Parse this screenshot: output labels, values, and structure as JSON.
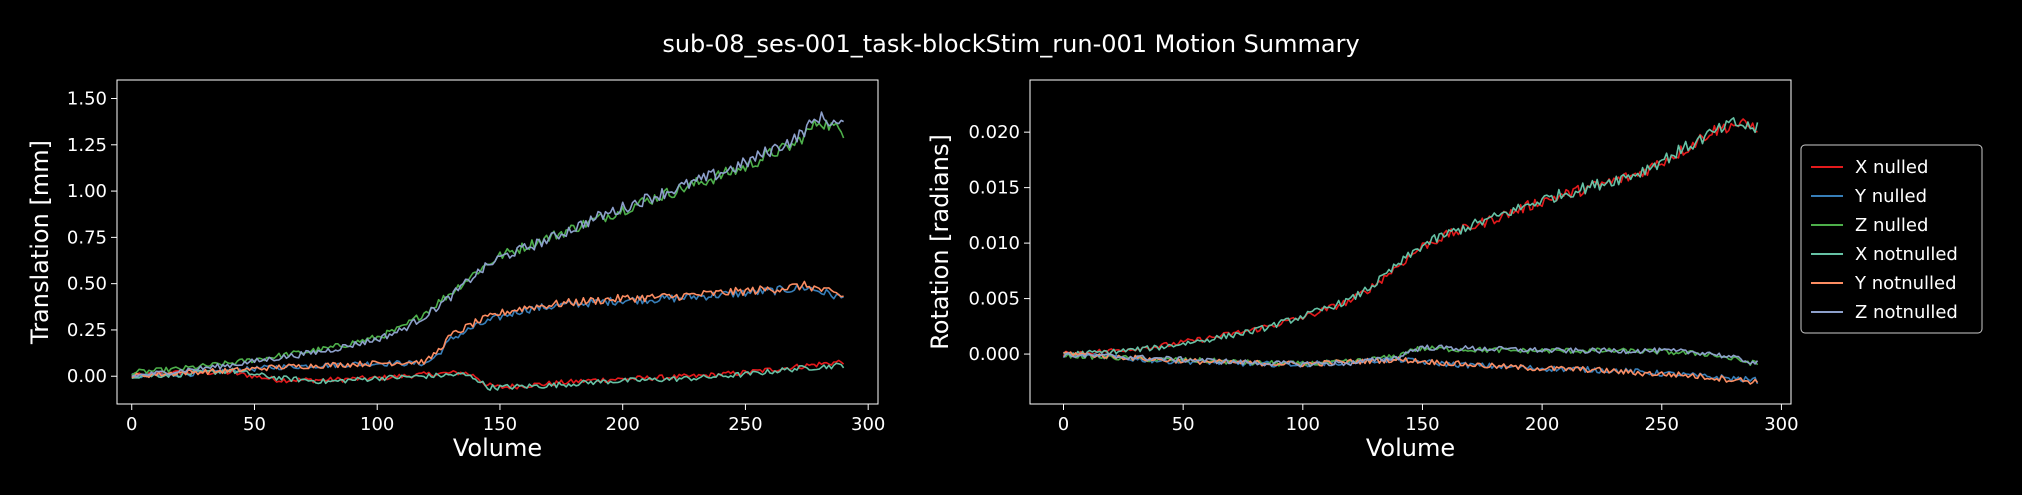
{
  "figure_title": "sub-08_ses-001_task-blockStim_run-001 Motion Summary",
  "colors": {
    "background": "#000000",
    "axes": "#ffffff",
    "X nulled": "#e41a1c",
    "Y nulled": "#377eb8",
    "Z nulled": "#4daf4a",
    "X notnulled": "#66c2a5",
    "Y notnulled": "#fc8d62",
    "Z notnulled": "#8da0cb"
  },
  "legend": {
    "placement": "right",
    "entries": [
      "X nulled",
      "Y nulled",
      "Z nulled",
      "X notnulled",
      "Y notnulled",
      "Z notnulled"
    ]
  },
  "chart_data": [
    {
      "type": "line",
      "xlabel": "Volume",
      "ylabel": "Translation [mm]",
      "xlim": [
        -6,
        304
      ],
      "ylim": [
        -0.15,
        1.6
      ],
      "xticks": [
        0,
        50,
        100,
        150,
        200,
        250,
        300
      ],
      "yticks": [
        0.0,
        0.25,
        0.5,
        0.75,
        1.0,
        1.25,
        1.5
      ],
      "ytick_labels": [
        "0.00",
        "0.25",
        "0.50",
        "0.75",
        "1.00",
        "1.25",
        "1.50"
      ],
      "grid": false,
      "series": [
        {
          "name": "X nulled",
          "x": [
            0,
            20,
            40,
            60,
            80,
            100,
            120,
            135,
            140,
            145,
            150,
            170,
            190,
            210,
            230,
            250,
            270,
            290
          ],
          "y": [
            0.0,
            0.02,
            0.02,
            -0.02,
            -0.02,
            -0.01,
            0.01,
            0.02,
            0.0,
            -0.05,
            -0.06,
            -0.04,
            -0.02,
            -0.01,
            0.0,
            0.02,
            0.05,
            0.08
          ]
        },
        {
          "name": "Y nulled",
          "x": [
            0,
            20,
            40,
            60,
            80,
            100,
            120,
            125,
            130,
            140,
            150,
            160,
            180,
            200,
            220,
            240,
            260,
            275,
            290
          ],
          "y": [
            0.0,
            0.01,
            0.03,
            0.05,
            0.06,
            0.07,
            0.07,
            0.12,
            0.2,
            0.27,
            0.32,
            0.36,
            0.39,
            0.41,
            0.42,
            0.44,
            0.46,
            0.48,
            0.42
          ]
        },
        {
          "name": "Z nulled",
          "x": [
            0,
            20,
            40,
            60,
            80,
            100,
            110,
            120,
            130,
            140,
            150,
            170,
            190,
            210,
            230,
            250,
            260,
            270,
            280,
            290
          ],
          "y": [
            0.02,
            0.04,
            0.07,
            0.11,
            0.15,
            0.21,
            0.26,
            0.35,
            0.45,
            0.56,
            0.65,
            0.75,
            0.85,
            0.95,
            1.04,
            1.13,
            1.2,
            1.25,
            1.38,
            1.32
          ]
        },
        {
          "name": "X notnulled",
          "x": [
            0,
            20,
            40,
            60,
            80,
            100,
            120,
            135,
            140,
            145,
            150,
            170,
            190,
            210,
            230,
            250,
            270,
            290
          ],
          "y": [
            0.0,
            0.01,
            0.03,
            -0.01,
            -0.03,
            -0.01,
            0.0,
            0.01,
            -0.01,
            -0.06,
            -0.06,
            -0.05,
            -0.03,
            -0.02,
            -0.01,
            0.01,
            0.04,
            0.06
          ]
        },
        {
          "name": "Y notnulled",
          "x": [
            0,
            20,
            40,
            60,
            80,
            100,
            120,
            125,
            130,
            140,
            150,
            160,
            180,
            200,
            220,
            240,
            260,
            275,
            290
          ],
          "y": [
            0.0,
            0.02,
            0.03,
            0.05,
            0.06,
            0.07,
            0.08,
            0.14,
            0.22,
            0.29,
            0.34,
            0.37,
            0.4,
            0.42,
            0.43,
            0.45,
            0.47,
            0.49,
            0.43
          ]
        },
        {
          "name": "Z notnulled",
          "x": [
            0,
            20,
            40,
            60,
            80,
            100,
            110,
            120,
            130,
            140,
            150,
            170,
            190,
            210,
            230,
            250,
            260,
            270,
            280,
            290
          ],
          "y": [
            0.0,
            0.03,
            0.06,
            0.1,
            0.14,
            0.2,
            0.25,
            0.33,
            0.43,
            0.55,
            0.64,
            0.74,
            0.86,
            0.96,
            1.05,
            1.15,
            1.22,
            1.28,
            1.4,
            1.35
          ]
        }
      ]
    },
    {
      "type": "line",
      "xlabel": "Volume",
      "ylabel": "Rotation [radians]",
      "xlim": [
        -14,
        304
      ],
      "ylim": [
        -0.0045,
        0.0247
      ],
      "xticks": [
        0,
        50,
        100,
        150,
        200,
        250,
        300
      ],
      "yticks": [
        0.0,
        0.005,
        0.01,
        0.015,
        0.02
      ],
      "ytick_labels": [
        "0.000",
        "0.005",
        "0.010",
        "0.015",
        "0.020"
      ],
      "grid": false,
      "series": [
        {
          "name": "X nulled",
          "x": [
            0,
            20,
            40,
            60,
            80,
            100,
            120,
            130,
            140,
            150,
            160,
            180,
            200,
            220,
            240,
            260,
            270,
            280,
            290
          ],
          "y": [
            0.0,
            0.0003,
            0.0007,
            0.0014,
            0.0022,
            0.0033,
            0.0048,
            0.0062,
            0.008,
            0.0097,
            0.0107,
            0.0122,
            0.0138,
            0.015,
            0.0162,
            0.0185,
            0.02,
            0.0207,
            0.0205
          ]
        },
        {
          "name": "Y nulled",
          "x": [
            0,
            20,
            40,
            60,
            80,
            100,
            120,
            140,
            160,
            180,
            200,
            220,
            240,
            260,
            280,
            290
          ],
          "y": [
            0.0,
            -0.0003,
            -0.0006,
            -0.0007,
            -0.0009,
            -0.0009,
            -0.0007,
            -0.0005,
            -0.0009,
            -0.0011,
            -0.0013,
            -0.0014,
            -0.0016,
            -0.0019,
            -0.0022,
            -0.0024
          ]
        },
        {
          "name": "Z nulled",
          "x": [
            0,
            20,
            40,
            60,
            80,
            100,
            120,
            140,
            145,
            150,
            170,
            190,
            210,
            230,
            250,
            270,
            290
          ],
          "y": [
            -0.0001,
            -0.0003,
            -0.0005,
            -0.0006,
            -0.0008,
            -0.0009,
            -0.0007,
            -0.0002,
            0.0004,
            0.0005,
            0.0004,
            0.0003,
            0.0003,
            0.0003,
            0.0002,
            0.0,
            -0.0009
          ]
        },
        {
          "name": "X notnulled",
          "x": [
            0,
            20,
            40,
            60,
            80,
            100,
            120,
            130,
            140,
            150,
            160,
            180,
            200,
            220,
            240,
            260,
            270,
            280,
            290
          ],
          "y": [
            0.0,
            0.0002,
            0.0006,
            0.0013,
            0.0021,
            0.0034,
            0.0049,
            0.0063,
            0.0081,
            0.0098,
            0.0108,
            0.0123,
            0.0139,
            0.0151,
            0.0163,
            0.0186,
            0.0198,
            0.0208,
            0.0203
          ]
        },
        {
          "name": "Y notnulled",
          "x": [
            0,
            20,
            40,
            60,
            80,
            100,
            120,
            140,
            160,
            180,
            200,
            220,
            240,
            260,
            280,
            290
          ],
          "y": [
            0.0001,
            -0.0002,
            -0.0005,
            -0.0007,
            -0.0008,
            -0.0009,
            -0.0007,
            -0.0005,
            -0.0008,
            -0.0011,
            -0.0013,
            -0.0014,
            -0.0017,
            -0.0019,
            -0.0023,
            -0.0025
          ]
        },
        {
          "name": "Z notnulled",
          "x": [
            0,
            20,
            40,
            60,
            80,
            100,
            120,
            140,
            145,
            150,
            170,
            190,
            210,
            230,
            250,
            270,
            290
          ],
          "y": [
            -0.0001,
            -0.0002,
            -0.0004,
            -0.0006,
            -0.0008,
            -0.0009,
            -0.0008,
            -0.0003,
            0.0003,
            0.0006,
            0.0005,
            0.0004,
            0.0003,
            0.0003,
            0.0003,
            0.0001,
            -0.0008
          ]
        }
      ]
    }
  ]
}
